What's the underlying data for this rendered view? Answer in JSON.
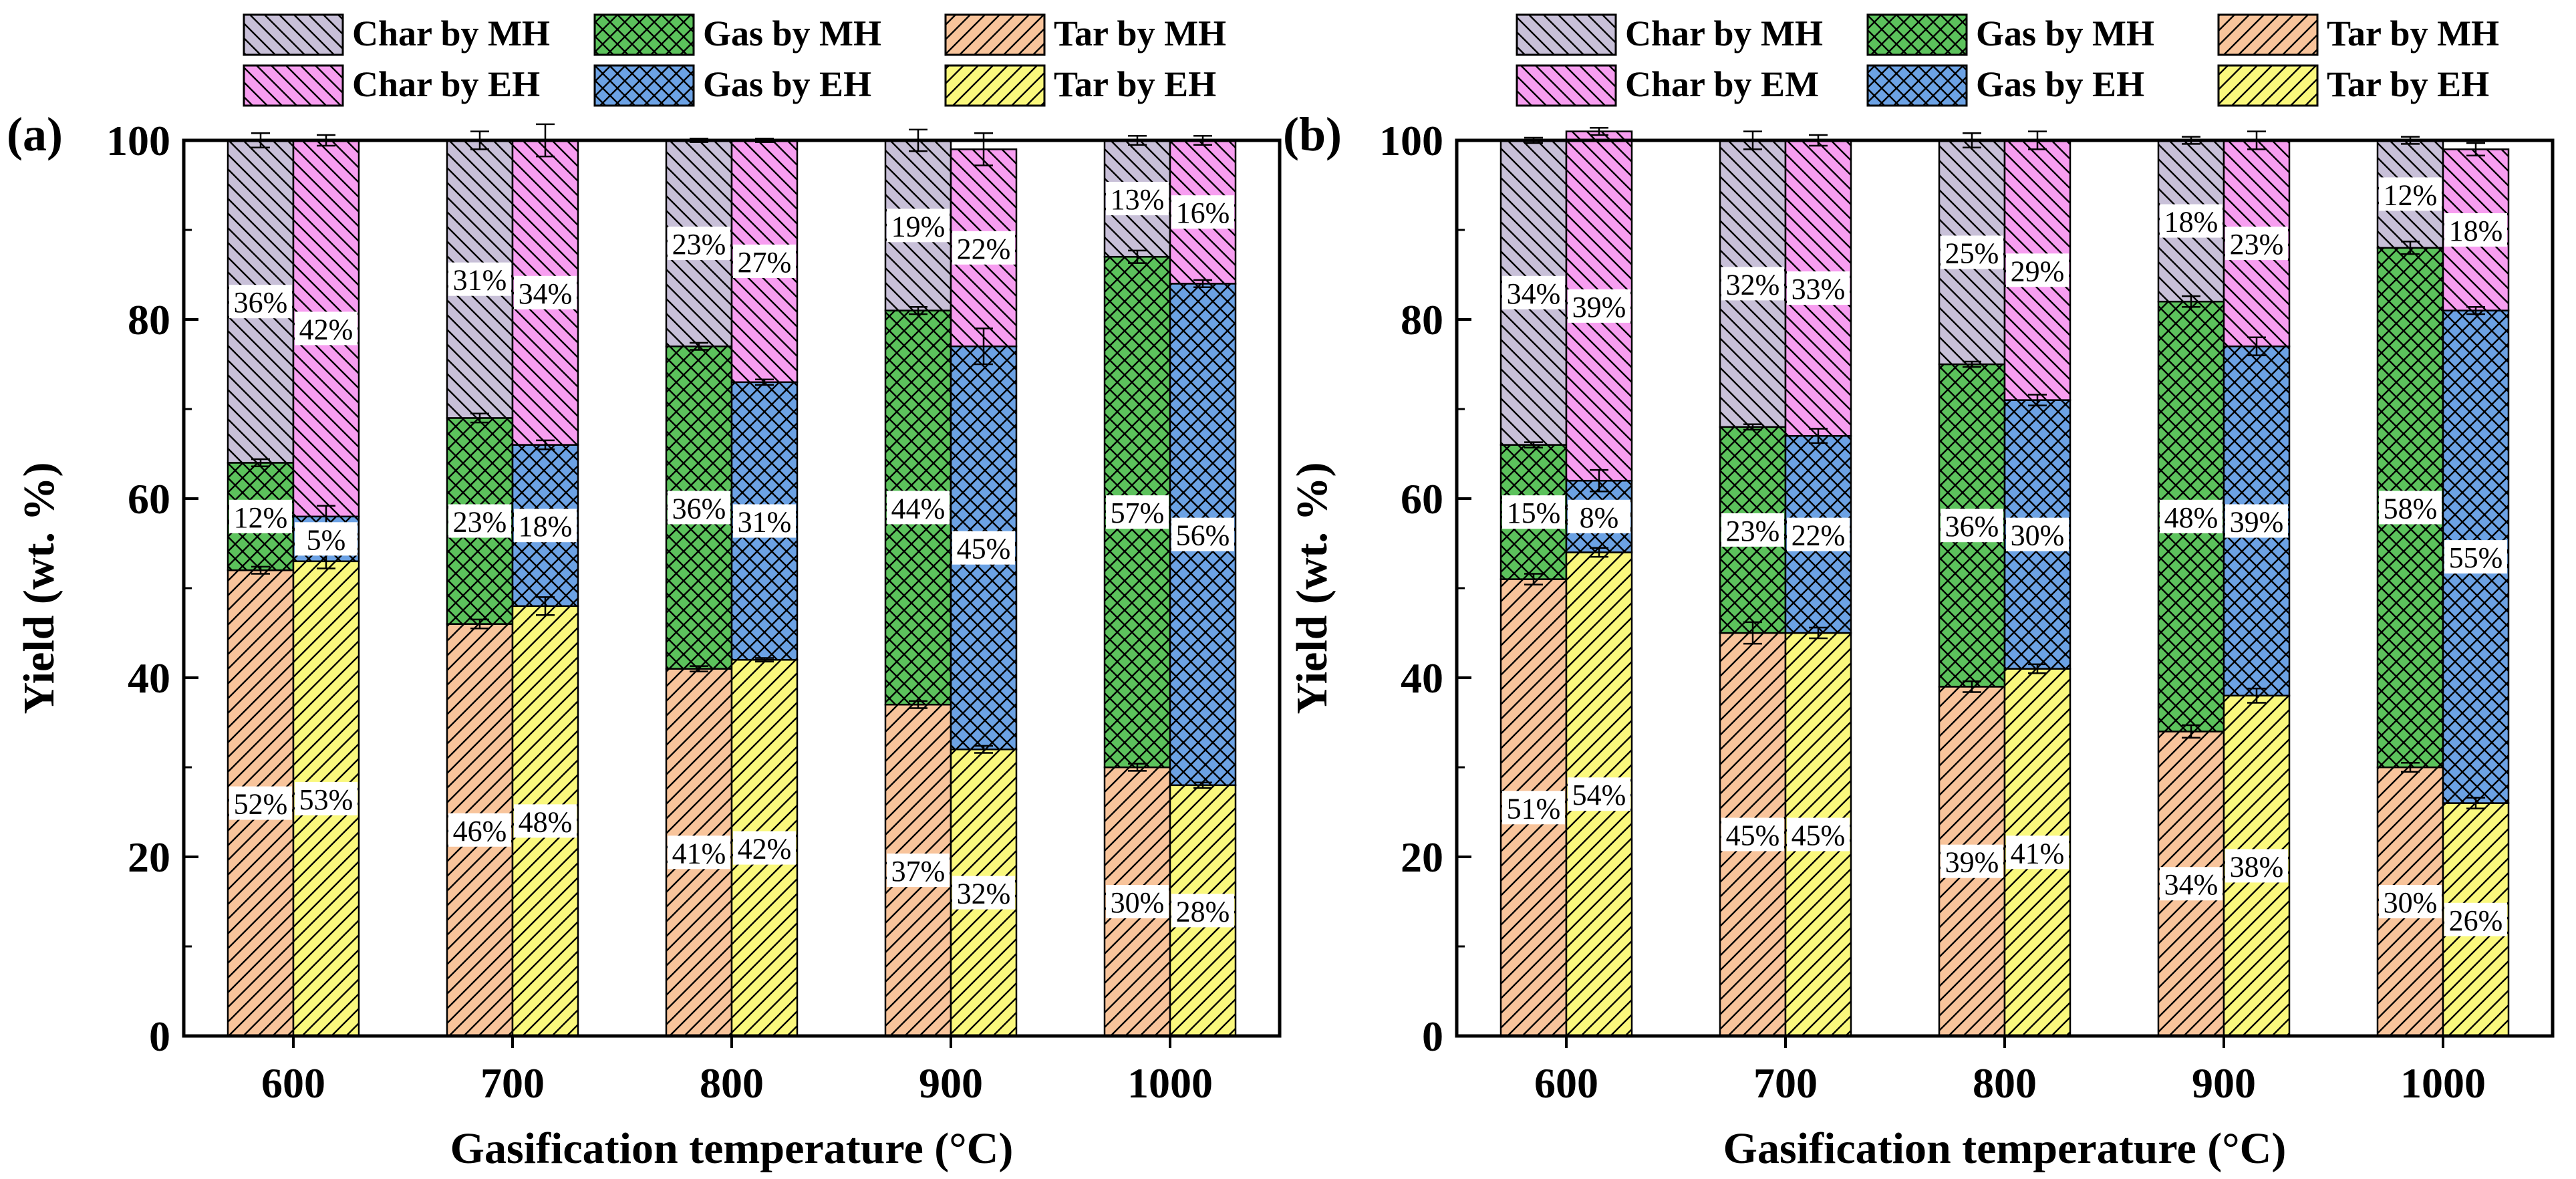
{
  "colors": {
    "tar_mh": "#f8c49b",
    "tar_eh": "#faf87d",
    "gas_mh": "#5cc25c",
    "gas_eh": "#6ca2e4",
    "char_mh": "#c8c0d8",
    "char_eh": "#f79ef0",
    "label_bg": "#ffffff",
    "axis": "#000000"
  },
  "legends": [
    {
      "items": [
        {
          "label": "Char by MH",
          "fill": "char_mh",
          "pattern": "diag-back"
        },
        {
          "label": "Gas by MH",
          "fill": "gas_mh",
          "pattern": "cross"
        },
        {
          "label": "Tar by MH",
          "fill": "tar_mh",
          "pattern": "diag-fwd"
        },
        {
          "label": "Char by EH",
          "fill": "char_eh",
          "pattern": "diag-back"
        },
        {
          "label": "Gas by EH",
          "fill": "gas_eh",
          "pattern": "cross"
        },
        {
          "label": "Tar by EH",
          "fill": "tar_eh",
          "pattern": "diag-fwd"
        }
      ]
    },
    {
      "items": [
        {
          "label": "Char by MH",
          "fill": "char_mh",
          "pattern": "diag-back"
        },
        {
          "label": "Gas by MH",
          "fill": "gas_mh",
          "pattern": "cross"
        },
        {
          "label": "Tar by MH",
          "fill": "tar_mh",
          "pattern": "diag-fwd"
        },
        {
          "label": "Char by EM",
          "fill": "char_eh",
          "pattern": "diag-back"
        },
        {
          "label": "Gas by EH",
          "fill": "gas_eh",
          "pattern": "cross"
        },
        {
          "label": "Tar by EH",
          "fill": "tar_eh",
          "pattern": "diag-fwd"
        }
      ]
    }
  ],
  "chart_data": [
    {
      "type": "bar",
      "stacked": true,
      "panel_label": "(a)",
      "xlabel": "Gasification temperature (°C)",
      "ylabel": "Yield (wt. %)",
      "ylim": [
        0,
        100
      ],
      "yticks": [
        0,
        20,
        40,
        60,
        80,
        100
      ],
      "categories": [
        "600",
        "700",
        "800",
        "900",
        "1000"
      ],
      "groups": [
        "MH",
        "EH"
      ],
      "series": [
        {
          "component": "Tar",
          "group": "MH",
          "values": [
            52,
            46,
            41,
            37,
            30
          ],
          "labels": [
            "52%",
            "46%",
            "41%",
            "37%",
            "30%"
          ],
          "error": [
            0.4,
            0.5,
            0.3,
            0.4,
            0.4
          ]
        },
        {
          "component": "Gas",
          "group": "MH",
          "values": [
            12,
            23,
            36,
            44,
            57
          ],
          "labels": [
            "12%",
            "23%",
            "36%",
            "44%",
            "57%"
          ],
          "error": [
            0.4,
            0.5,
            0.4,
            0.4,
            0.7
          ]
        },
        {
          "component": "Char",
          "group": "MH",
          "values": [
            36,
            31,
            23,
            19,
            13
          ],
          "labels": [
            "36%",
            "31%",
            "23%",
            "19%",
            "13%"
          ],
          "error": [
            0.8,
            1.0,
            0.2,
            1.2,
            0.5
          ]
        },
        {
          "component": "Tar",
          "group": "EH",
          "values": [
            53,
            48,
            42,
            32,
            28
          ],
          "labels": [
            "53%",
            "48%",
            "42%",
            "32%",
            "28%"
          ],
          "error": [
            0.8,
            1.0,
            0.2,
            0.4,
            0.3
          ]
        },
        {
          "component": "Gas",
          "group": "EH",
          "values": [
            5,
            18,
            31,
            45,
            56
          ],
          "labels": [
            "5%",
            "18%",
            "31%",
            "45%",
            "56%"
          ],
          "error": [
            1.2,
            0.5,
            0.3,
            2.0,
            0.4
          ]
        },
        {
          "component": "Char",
          "group": "EH",
          "values": [
            42,
            34,
            27,
            22,
            16
          ],
          "labels": [
            "42%",
            "34%",
            "27%",
            "22%",
            "16%"
          ],
          "error": [
            0.6,
            1.8,
            0.2,
            1.8,
            0.5
          ]
        }
      ]
    },
    {
      "type": "bar",
      "stacked": true,
      "panel_label": "(b)",
      "xlabel": "Gasification temperature (°C)",
      "ylabel": "Yield (wt. %)",
      "ylim": [
        0,
        100
      ],
      "yticks": [
        0,
        20,
        40,
        60,
        80,
        100
      ],
      "categories": [
        "600",
        "700",
        "800",
        "900",
        "1000"
      ],
      "groups": [
        "MH",
        "EH"
      ],
      "series": [
        {
          "component": "Tar",
          "group": "MH",
          "values": [
            51,
            45,
            39,
            34,
            30
          ],
          "labels": [
            "51%",
            "45%",
            "39%",
            "34%",
            "30%"
          ],
          "error": [
            0.6,
            1.2,
            0.6,
            0.7,
            0.5
          ]
        },
        {
          "component": "Gas",
          "group": "MH",
          "values": [
            15,
            23,
            36,
            48,
            58
          ],
          "labels": [
            "15%",
            "23%",
            "36%",
            "48%",
            "58%"
          ],
          "error": [
            0.3,
            0.3,
            0.3,
            0.6,
            0.7
          ]
        },
        {
          "component": "Char",
          "group": "MH",
          "values": [
            34,
            32,
            25,
            18,
            12
          ],
          "labels": [
            "34%",
            "32%",
            "25%",
            "18%",
            "12%"
          ],
          "error": [
            0.3,
            1.0,
            0.8,
            0.4,
            0.4
          ]
        },
        {
          "component": "Tar",
          "group": "EH",
          "values": [
            54,
            45,
            41,
            38,
            26
          ],
          "labels": [
            "54%",
            "45%",
            "41%",
            "38%",
            "26%"
          ],
          "error": [
            0.5,
            0.6,
            0.5,
            0.8,
            0.6
          ]
        },
        {
          "component": "Gas",
          "group": "EH",
          "values": [
            8,
            22,
            30,
            39,
            55
          ],
          "labels": [
            "8%",
            "22%",
            "30%",
            "39%",
            "55%"
          ],
          "error": [
            1.2,
            0.8,
            0.6,
            1.0,
            0.4
          ]
        },
        {
          "component": "Char",
          "group": "EH",
          "values": [
            39,
            33,
            29,
            23,
            18
          ],
          "labels": [
            "39%",
            "33%",
            "29%",
            "23%",
            "18%"
          ],
          "error": [
            0.4,
            0.6,
            1.0,
            1.0,
            0.7
          ]
        }
      ]
    }
  ]
}
